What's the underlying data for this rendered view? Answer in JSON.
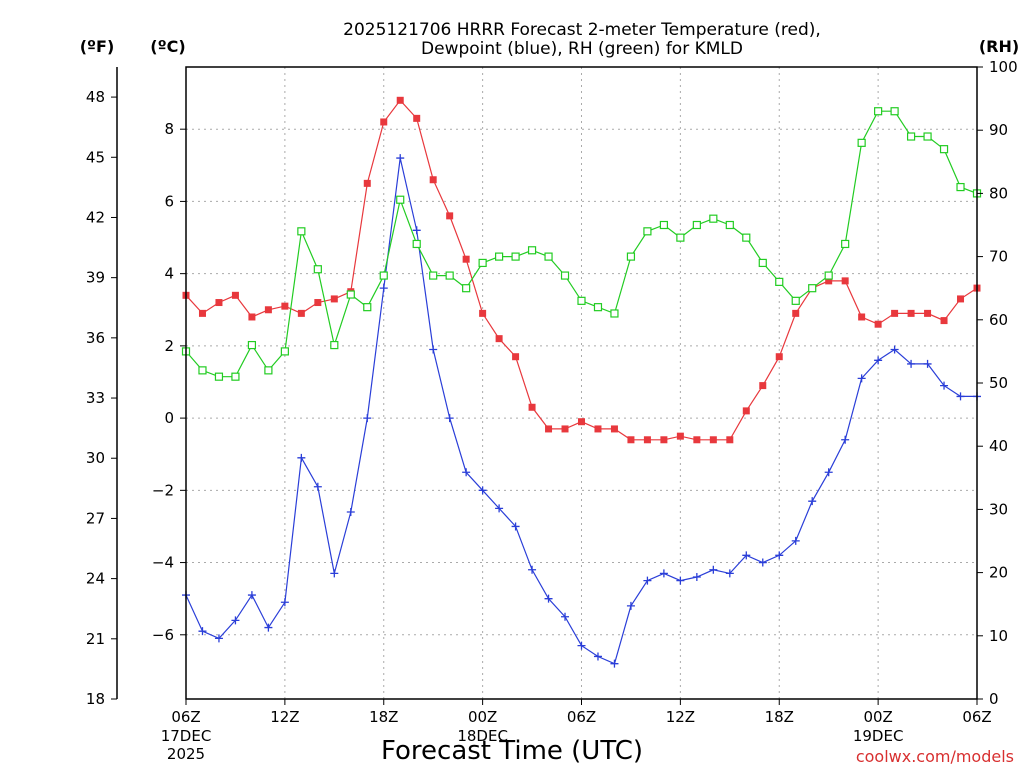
{
  "chart_data": {
    "type": "line",
    "title_line1": "2025121706 HRRR Forecast 2-meter Temperature (red),",
    "title_line2": "Dewpoint (blue), RH (green) for KMLD",
    "xlabel": "Forecast Time (UTC)",
    "unit_labels": {
      "fahrenheit": "(ºF)",
      "celsius": "(ºC)",
      "rh": "(RH)"
    },
    "credit": "coolwx.com/models",
    "x_range_hours": [
      0,
      48
    ],
    "y_celsius_range": [
      -7.778,
      9.722
    ],
    "y_rh_range": [
      0,
      100
    ],
    "x_ticks": [
      {
        "hour": 0,
        "label": "06Z",
        "sub1": "17DEC",
        "sub2": "2025"
      },
      {
        "hour": 6,
        "label": "12Z",
        "sub1": "",
        "sub2": ""
      },
      {
        "hour": 12,
        "label": "18Z",
        "sub1": "",
        "sub2": ""
      },
      {
        "hour": 18,
        "label": "00Z",
        "sub1": "18DEC",
        "sub2": ""
      },
      {
        "hour": 24,
        "label": "06Z",
        "sub1": "",
        "sub2": ""
      },
      {
        "hour": 30,
        "label": "12Z",
        "sub1": "",
        "sub2": ""
      },
      {
        "hour": 36,
        "label": "18Z",
        "sub1": "",
        "sub2": ""
      },
      {
        "hour": 42,
        "label": "00Z",
        "sub1": "19DEC",
        "sub2": ""
      },
      {
        "hour": 48,
        "label": "06Z",
        "sub1": "",
        "sub2": ""
      }
    ],
    "y_celsius_ticks": [
      {
        "value": -6,
        "label": "−6"
      },
      {
        "value": -4,
        "label": "−4"
      },
      {
        "value": -2,
        "label": "−2"
      },
      {
        "value": 0,
        "label": "0"
      },
      {
        "value": 2,
        "label": "2"
      },
      {
        "value": 4,
        "label": "4"
      },
      {
        "value": 6,
        "label": "6"
      },
      {
        "value": 8,
        "label": "8"
      }
    ],
    "y_fahrenheit_ticks": [
      {
        "value": 18,
        "label": "18"
      },
      {
        "value": 21,
        "label": "21"
      },
      {
        "value": 24,
        "label": "24"
      },
      {
        "value": 27,
        "label": "27"
      },
      {
        "value": 30,
        "label": "30"
      },
      {
        "value": 33,
        "label": "33"
      },
      {
        "value": 36,
        "label": "36"
      },
      {
        "value": 39,
        "label": "39"
      },
      {
        "value": 42,
        "label": "42"
      },
      {
        "value": 45,
        "label": "45"
      },
      {
        "value": 48,
        "label": "48"
      }
    ],
    "y_rh_ticks": [
      {
        "value": 0,
        "label": "0"
      },
      {
        "value": 10,
        "label": "10"
      },
      {
        "value": 20,
        "label": "20"
      },
      {
        "value": 30,
        "label": "30"
      },
      {
        "value": 40,
        "label": "40"
      },
      {
        "value": 50,
        "label": "50"
      },
      {
        "value": 60,
        "label": "60"
      },
      {
        "value": 70,
        "label": "70"
      },
      {
        "value": 80,
        "label": "80"
      },
      {
        "value": 90,
        "label": "90"
      },
      {
        "value": 100,
        "label": "100"
      }
    ],
    "series": [
      {
        "name": "2-meter Temperature",
        "axis": "celsius",
        "color": "#e8383d",
        "marker": "filled-square",
        "values": [
          3.4,
          2.9,
          3.2,
          3.4,
          2.8,
          3.0,
          3.1,
          2.9,
          3.2,
          3.3,
          3.5,
          6.5,
          8.2,
          8.8,
          8.3,
          6.6,
          5.6,
          4.4,
          2.9,
          2.2,
          1.7,
          0.3,
          -0.3,
          -0.3,
          -0.1,
          -0.3,
          -0.3,
          -0.6,
          -0.6,
          -0.6,
          -0.5,
          -0.6,
          -0.6,
          -0.6,
          0.2,
          0.9,
          1.7,
          2.9,
          3.6,
          3.8,
          3.8,
          2.8,
          2.6,
          2.9,
          2.9,
          2.9,
          2.7,
          3.3,
          3.6
        ]
      },
      {
        "name": "Dewpoint",
        "axis": "celsius",
        "color": "#2a3ed8",
        "marker": "plus",
        "values": [
          -4.9,
          -5.9,
          -6.1,
          -5.6,
          -4.9,
          -5.8,
          -5.1,
          -1.1,
          -1.9,
          -4.3,
          -2.6,
          0.0,
          3.6,
          7.2,
          5.2,
          1.9,
          0.0,
          -1.5,
          -2.0,
          -2.5,
          -3.0,
          -4.2,
          -5.0,
          -5.5,
          -6.3,
          -6.6,
          -6.8,
          -5.2,
          -4.5,
          -4.3,
          -4.5,
          -4.4,
          -4.2,
          -4.3,
          -3.8,
          -4.0,
          -3.8,
          -3.4,
          -2.3,
          -1.5,
          -0.6,
          1.1,
          1.6,
          1.9,
          1.5,
          1.5,
          0.9,
          0.6,
          0.6
        ]
      },
      {
        "name": "RH",
        "axis": "rh",
        "color": "#22cc22",
        "marker": "open-square",
        "values": [
          55,
          52,
          51,
          51,
          56,
          52,
          55,
          74,
          68,
          56,
          64,
          62,
          67,
          79,
          72,
          67,
          67,
          65,
          69,
          70,
          70,
          71,
          70,
          67,
          63,
          62,
          61,
          70,
          74,
          75,
          73,
          75,
          76,
          75,
          73,
          69,
          66,
          63,
          65,
          67,
          72,
          88,
          93,
          93,
          89,
          89,
          87,
          81,
          80
        ]
      }
    ]
  }
}
